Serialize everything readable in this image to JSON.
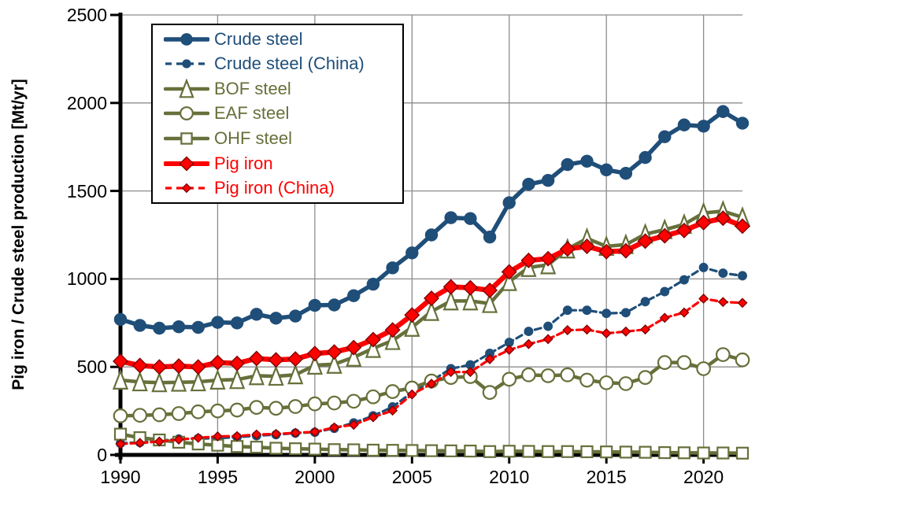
{
  "page": {
    "background": "#FFFFFF"
  },
  "chart_data": {
    "type": "line",
    "title": "",
    "xlabel": "",
    "ylabel": "Pig iron / Crude steel production [Mt/yr]",
    "xlim": [
      1990,
      2022
    ],
    "ylim": [
      0,
      2500
    ],
    "xticks": [
      1990,
      1995,
      2000,
      2005,
      2010,
      2015,
      2020
    ],
    "yticks": [
      0,
      500,
      1000,
      1500,
      2000,
      2500
    ],
    "xtick_labels": [
      "1990",
      "1995",
      "2000",
      "2005",
      "2010",
      "2015",
      "2020"
    ],
    "ytick_labels": [
      "0",
      "500",
      "1000",
      "1500",
      "2000",
      "2500"
    ],
    "grid": true,
    "grid_color": "#8C8C8C",
    "axis_color": "#000000",
    "legend_position": "top-left",
    "x": [
      1990,
      1991,
      1992,
      1993,
      1994,
      1995,
      1996,
      1997,
      1998,
      1999,
      2000,
      2001,
      2002,
      2003,
      2004,
      2005,
      2006,
      2007,
      2008,
      2009,
      2010,
      2011,
      2012,
      2013,
      2014,
      2015,
      2016,
      2017,
      2018,
      2019,
      2020,
      2021,
      2022
    ],
    "series": [
      {
        "name": "Crude steel",
        "color": "#1F4E79",
        "dash": "solid",
        "line_width": 5.5,
        "marker": "circle",
        "marker_filled": true,
        "marker_size": 15,
        "values": [
          770,
          736,
          720,
          728,
          725,
          753,
          750,
          799,
          777,
          789,
          850,
          852,
          905,
          970,
          1063,
          1148,
          1250,
          1348,
          1343,
          1238,
          1433,
          1538,
          1560,
          1650,
          1669,
          1620,
          1600,
          1690,
          1808,
          1875,
          1868,
          1951,
          1885
        ]
      },
      {
        "name": "Crude steel (China)",
        "color": "#1F4E79",
        "dash": "dashed",
        "line_width": 3.2,
        "marker": "circle",
        "marker_filled": true,
        "marker_size": 10.5,
        "values": [
          66,
          71,
          81,
          90,
          93,
          95,
          101,
          109,
          115,
          124,
          129,
          151,
          182,
          222,
          273,
          355,
          421,
          490,
          512,
          577,
          639,
          702,
          731,
          822,
          822,
          804,
          808,
          871,
          928,
          995,
          1065,
          1033,
          1018
        ]
      },
      {
        "name": "BOF steel",
        "color": "#66703A",
        "dash": "solid",
        "line_width": 4.5,
        "marker": "triangle",
        "marker_filled": false,
        "marker_size": 17,
        "values": [
          425,
          415,
          410,
          413,
          415,
          425,
          428,
          450,
          447,
          455,
          510,
          515,
          555,
          605,
          650,
          725,
          815,
          875,
          875,
          860,
          985,
          1065,
          1080,
          1170,
          1230,
          1185,
          1195,
          1255,
          1280,
          1310,
          1375,
          1385,
          1350
        ]
      },
      {
        "name": "EAF steel",
        "color": "#66703A",
        "dash": "solid",
        "line_width": 4.5,
        "marker": "circle",
        "marker_filled": false,
        "marker_size": 16.5,
        "values": [
          222,
          225,
          228,
          235,
          245,
          250,
          255,
          270,
          265,
          275,
          290,
          295,
          305,
          330,
          360,
          380,
          420,
          440,
          445,
          355,
          430,
          455,
          450,
          455,
          425,
          410,
          405,
          440,
          525,
          525,
          490,
          570,
          540
        ]
      },
      {
        "name": "OHF steel",
        "color": "#66703A",
        "dash": "solid",
        "line_width": 4.5,
        "marker": "square",
        "marker_filled": false,
        "marker_size": 14,
        "values": [
          118,
          98,
          85,
          72,
          62,
          55,
          48,
          44,
          38,
          35,
          33,
          30,
          29,
          27,
          26,
          25,
          24,
          23,
          22,
          19,
          21,
          20,
          19,
          19,
          18,
          17,
          16,
          15,
          13,
          12,
          11,
          11,
          10
        ]
      },
      {
        "name": "Pig iron",
        "color": "#FF0000",
        "dash": "solid",
        "line_width": 6.5,
        "marker": "diamond",
        "marker_filled": true,
        "marker_stroke": "#7F0000",
        "marker_size": 18,
        "values": [
          532,
          508,
          500,
          505,
          500,
          525,
          520,
          548,
          540,
          545,
          576,
          585,
          610,
          655,
          710,
          795,
          890,
          955,
          950,
          935,
          1040,
          1105,
          1115,
          1170,
          1185,
          1155,
          1160,
          1215,
          1245,
          1275,
          1320,
          1345,
          1300
        ]
      },
      {
        "name": "Pig iron (China)",
        "color": "#FF0000",
        "dash": "dashed",
        "line_width": 3.2,
        "marker": "diamond",
        "marker_filled": true,
        "marker_stroke": "#7F0000",
        "marker_size": 11,
        "values": [
          62,
          68,
          76,
          87,
          97,
          105,
          107,
          116,
          119,
          125,
          131,
          156,
          171,
          214,
          252,
          344,
          404,
          471,
          471,
          544,
          597,
          630,
          658,
          709,
          712,
          691,
          701,
          713,
          779,
          809,
          888,
          869,
          864
        ]
      }
    ]
  }
}
